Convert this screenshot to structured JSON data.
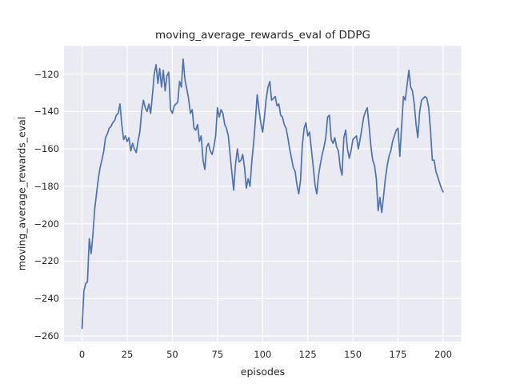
{
  "chart_data": {
    "type": "line",
    "title": "moving_average_rewards_eval of DDPG",
    "xlabel": "episodes",
    "ylabel": "moving_average_rewards_eval",
    "legend": "none",
    "grid": true,
    "x_ticks": [
      0,
      25,
      50,
      75,
      100,
      125,
      150,
      175,
      200
    ],
    "x_tick_labels": [
      "0",
      "25",
      "50",
      "75",
      "100",
      "125",
      "150",
      "175",
      "200"
    ],
    "y_ticks": [
      -120,
      -140,
      -160,
      -180,
      -200,
      -220,
      -240,
      -260
    ],
    "y_tick_labels": [
      "−120",
      "−140",
      "−160",
      "−180",
      "−200",
      "−220",
      "−240",
      "−260"
    ],
    "xlim": [
      -10,
      210
    ],
    "ylim": [
      -263,
      -105
    ],
    "colors": {
      "line": "#4c72b0",
      "plot_background": "#eaeaf2",
      "grid": "#ffffff",
      "text": "#262626",
      "figure_background": "#ffffff"
    },
    "series": [
      {
        "name": "moving_average_rewards_eval",
        "x": [
          0,
          1,
          2,
          3,
          4,
          5,
          6,
          7,
          8,
          9,
          10,
          11,
          12,
          13,
          14,
          15,
          16,
          17,
          18,
          19,
          20,
          21,
          22,
          23,
          24,
          25,
          26,
          27,
          28,
          29,
          30,
          31,
          32,
          33,
          34,
          35,
          36,
          37,
          38,
          39,
          40,
          41,
          42,
          43,
          44,
          45,
          46,
          47,
          48,
          49,
          50,
          51,
          52,
          53,
          54,
          55,
          56,
          57,
          58,
          59,
          60,
          61,
          62,
          63,
          64,
          65,
          66,
          67,
          68,
          69,
          70,
          71,
          72,
          73,
          74,
          75,
          76,
          77,
          78,
          79,
          80,
          81,
          82,
          83,
          84,
          85,
          86,
          87,
          88,
          89,
          90,
          91,
          92,
          93,
          94,
          95,
          96,
          97,
          98,
          99,
          100,
          101,
          102,
          103,
          104,
          105,
          106,
          107,
          108,
          109,
          110,
          111,
          112,
          113,
          114,
          115,
          116,
          117,
          118,
          119,
          120,
          121,
          122,
          123,
          124,
          125,
          126,
          127,
          128,
          129,
          130,
          131,
          132,
          133,
          134,
          135,
          136,
          137,
          138,
          139,
          140,
          141,
          142,
          143,
          144,
          145,
          146,
          147,
          148,
          149,
          150,
          151,
          152,
          153,
          154,
          155,
          156,
          157,
          158,
          159,
          160,
          161,
          162,
          163,
          164,
          165,
          166,
          167,
          168,
          169,
          170,
          171,
          172,
          173,
          174,
          175,
          176,
          177,
          178,
          179,
          180,
          181,
          182,
          183,
          184,
          185,
          186,
          187,
          188,
          189,
          190,
          191,
          192,
          193,
          194,
          195,
          196,
          197,
          198,
          199,
          200
        ],
        "y": [
          -256,
          -236,
          -232,
          -231,
          -208,
          -216,
          -206,
          -192,
          -184,
          -176,
          -170,
          -166,
          -161,
          -154,
          -152,
          -149,
          -148,
          -146,
          -145,
          -142,
          -141,
          -136,
          -147,
          -155,
          -153,
          -156,
          -154,
          -161,
          -157,
          -160,
          -162,
          -156,
          -151,
          -140,
          -134,
          -138,
          -140,
          -136,
          -141,
          -131,
          -120,
          -115,
          -125,
          -117,
          -127,
          -118,
          -129,
          -121,
          -119,
          -139,
          -141,
          -137,
          -136,
          -135,
          -124,
          -127,
          -112,
          -123,
          -128,
          -133,
          -141,
          -139,
          -149,
          -150,
          -147,
          -156,
          -153,
          -166,
          -171,
          -159,
          -157,
          -161,
          -163,
          -159,
          -153,
          -138,
          -143,
          -139,
          -141,
          -147,
          -149,
          -153,
          -163,
          -173,
          -182,
          -168,
          -160,
          -167,
          -166,
          -163,
          -170,
          -181,
          -176,
          -180,
          -167,
          -157,
          -145,
          -131,
          -139,
          -146,
          -151,
          -143,
          -133,
          -127,
          -124,
          -134,
          -133,
          -132,
          -137,
          -136,
          -142,
          -143,
          -147,
          -149,
          -154,
          -160,
          -165,
          -170,
          -172,
          -179,
          -184,
          -177,
          -158,
          -149,
          -146,
          -153,
          -151,
          -160,
          -169,
          -179,
          -184,
          -174,
          -168,
          -163,
          -159,
          -154,
          -143,
          -142,
          -155,
          -157,
          -154,
          -159,
          -161,
          -170,
          -174,
          -154,
          -150,
          -160,
          -165,
          -161,
          -155,
          -154,
          -153,
          -160,
          -155,
          -149,
          -143,
          -140,
          -138,
          -148,
          -159,
          -166,
          -169,
          -176,
          -193,
          -186,
          -194,
          -185,
          -176,
          -169,
          -164,
          -161,
          -156,
          -153,
          -150,
          -149,
          -164,
          -148,
          -132,
          -134,
          -126,
          -118,
          -127,
          -129,
          -136,
          -147,
          -154,
          -140,
          -134,
          -133,
          -132,
          -133,
          -138,
          -150,
          -166,
          -166,
          -172,
          -175,
          -178,
          -181,
          -183
        ]
      }
    ]
  }
}
